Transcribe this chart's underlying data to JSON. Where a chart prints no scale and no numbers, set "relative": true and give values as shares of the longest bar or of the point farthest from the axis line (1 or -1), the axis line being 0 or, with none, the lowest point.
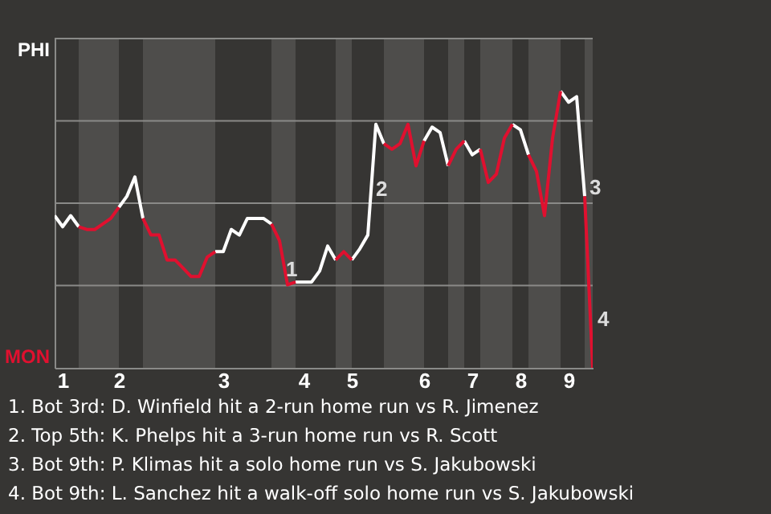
{
  "chart_data": {
    "type": "line",
    "relative": true,
    "categories": [
      null,
      "1",
      null,
      null,
      null,
      null,
      null,
      null,
      "2",
      null,
      null,
      null,
      null,
      null,
      null,
      null,
      null,
      null,
      null,
      null,
      null,
      "3",
      null,
      null,
      null,
      null,
      null,
      null,
      null,
      null,
      null,
      "4",
      null,
      null,
      null,
      null,
      null,
      "5",
      null,
      null,
      null,
      null,
      null,
      null,
      null,
      null,
      "6",
      null,
      null,
      null,
      null,
      null,
      "7",
      null,
      null,
      null,
      null,
      null,
      "8",
      null,
      null,
      null,
      null,
      null,
      "9",
      null,
      null,
      null
    ],
    "grid": "y",
    "marker": "none",
    "line_style": "solid",
    "series": [
      {
        "color": "#ffffff",
        "values": [
          0.55,
          0.51,
          0.55,
          0.51,
          null,
          null,
          null,
          null,
          0.58,
          0.62,
          0.69,
          0.54,
          null,
          null,
          null,
          null,
          null,
          null,
          null,
          null,
          0.42,
          0.42,
          0.5,
          0.48,
          0.54,
          0.54,
          0.54,
          0.52,
          null,
          null,
          0.31,
          0.31,
          0.31,
          0.35,
          0.44,
          0.39,
          null,
          0.39,
          0.43,
          0.48,
          0.88,
          0.81,
          null,
          null,
          null,
          null,
          0.82,
          0.87,
          0.85,
          0.73,
          null,
          0.82,
          0.77,
          0.79,
          null,
          null,
          null,
          0.88,
          0.86,
          0.77,
          null,
          null,
          null,
          1,
          0.96,
          0.98,
          0.62,
          null
        ]
      },
      {
        "color": "#e0102f",
        "values": [
          null,
          null,
          null,
          0.51,
          0.5,
          0.5,
          0.52,
          0.54,
          0.58,
          null,
          null,
          0.54,
          0.48,
          0.48,
          0.39,
          0.39,
          0.36,
          0.33,
          0.33,
          0.4,
          0.42,
          null,
          null,
          null,
          null,
          null,
          null,
          0.52,
          0.46,
          0.3,
          0.31,
          null,
          null,
          null,
          null,
          0.39,
          0.42,
          0.39,
          null,
          null,
          null,
          0.81,
          0.79,
          0.81,
          0.88,
          0.73,
          0.82,
          null,
          null,
          0.73,
          0.79,
          0.82,
          null,
          0.79,
          0.67,
          0.7,
          0.83,
          0.88,
          null,
          0.77,
          0.71,
          0.55,
          0.83,
          1,
          null,
          null,
          0.62,
          0
        ]
      }
    ],
    "annotations": [
      "PHI",
      "MON",
      "1",
      "2",
      "3",
      "4",
      "1. Bot 3rd: D. Winfield hit a 2-run home run vs R. Jimenez",
      "2. Top 5th: K. Phelps hit a 3-run home run vs R. Scott",
      "3. Bot 9th: P. Klimas hit a solo home run vs S. Jakubowski",
      "4. Bot 9th: L. Sanchez hit a walk-off solo home run vs S. Jakubowski"
    ]
  }
}
